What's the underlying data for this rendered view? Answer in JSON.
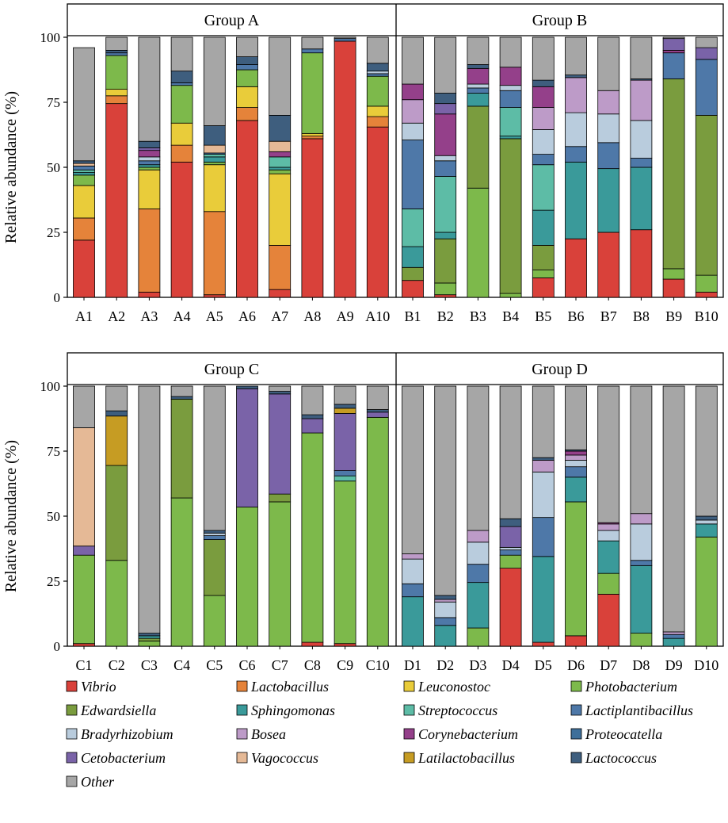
{
  "chart_data": {
    "type": "stacked-bar",
    "ylabel": "Relative abundance (%)",
    "ylim": [
      0,
      100
    ],
    "yticks": [
      0,
      25,
      50,
      75,
      100
    ],
    "taxa": [
      {
        "name": "Vibrio",
        "color": "#D9413A"
      },
      {
        "name": "Lactobacillus",
        "color": "#E5833A"
      },
      {
        "name": "Leuconostoc",
        "color": "#E9CC3A"
      },
      {
        "name": "Photobacterium",
        "color": "#7DB94B"
      },
      {
        "name": "Edwardsiella",
        "color": "#7A9C3E"
      },
      {
        "name": "Sphingomonas",
        "color": "#3A9A9A"
      },
      {
        "name": "Streptococcus",
        "color": "#5DBCA6"
      },
      {
        "name": "Lactiplantibacillus",
        "color": "#4E78A8"
      },
      {
        "name": "Bradyrhizobium",
        "color": "#B9CCDD"
      },
      {
        "name": "Bosea",
        "color": "#BD9BC8"
      },
      {
        "name": "Corynebacterium",
        "color": "#94408A"
      },
      {
        "name": "Proteocatella",
        "color": "#3E6F9A"
      },
      {
        "name": "Cetobacterium",
        "color": "#7A63A8"
      },
      {
        "name": "Vagococcus",
        "color": "#E5B996"
      },
      {
        "name": "Latilactobacillus",
        "color": "#C69C23"
      },
      {
        "name": "Lactococcus",
        "color": "#3E5E7E"
      },
      {
        "name": "Other",
        "color": "#A6A6A6"
      }
    ],
    "groups": [
      {
        "title": "Group A",
        "samples": [
          {
            "label": "A1",
            "values": [
              22,
              8.5,
              12.5,
              4,
              0,
              1,
              1,
              1.5,
              0,
              0,
              0,
              0,
              0,
              1,
              0,
              1,
              43.5
            ]
          },
          {
            "label": "A2",
            "values": [
              74.5,
              3,
              2.5,
              13,
              0,
              0,
              0,
              1,
              0,
              0,
              0,
              0,
              0,
              0,
              0,
              1,
              5
            ]
          },
          {
            "label": "A3",
            "values": [
              2,
              32,
              15,
              1,
              0,
              1,
              0,
              1.5,
              1.5,
              0,
              2.5,
              0,
              1,
              0,
              0,
              2.5,
              40
            ]
          },
          {
            "label": "A4",
            "values": [
              52,
              6.5,
              8.5,
              14.5,
              0,
              0,
              0,
              1,
              0,
              0,
              0,
              0,
              0,
              0,
              0,
              4.5,
              13
            ]
          },
          {
            "label": "A5",
            "values": [
              1,
              32,
              18,
              1,
              0,
              2,
              1,
              0.5,
              0,
              0,
              0,
              0,
              0,
              3,
              0,
              7.5,
              34
            ]
          },
          {
            "label": "A6",
            "values": [
              68,
              5,
              8,
              6.5,
              0,
              0,
              0,
              2,
              0,
              0,
              0,
              0,
              0,
              0,
              0,
              3,
              7.5
            ]
          },
          {
            "label": "A7",
            "values": [
              3,
              17,
              27.5,
              1.5,
              0,
              1,
              4,
              0,
              0,
              0,
              2,
              0,
              0,
              4,
              0,
              10,
              30
            ]
          },
          {
            "label": "A8",
            "values": [
              61,
              1,
              1,
              31,
              0,
              0,
              0,
              1.5,
              0,
              0,
              0,
              0,
              0,
              0,
              0,
              0,
              4.5
            ]
          },
          {
            "label": "A9",
            "values": [
              98.5,
              0,
              0,
              0,
              0,
              0,
              0,
              1,
              0,
              0,
              0,
              0,
              0,
              0,
              0,
              0,
              0.5
            ]
          },
          {
            "label": "A10",
            "values": [
              65.5,
              4,
              4,
              11.5,
              0,
              0,
              0,
              1,
              1,
              0,
              0,
              0,
              0,
              0,
              0,
              3,
              10
            ]
          }
        ]
      },
      {
        "title": "Group B",
        "samples": [
          {
            "label": "B1",
            "values": [
              6.5,
              0,
              0,
              0,
              5,
              8,
              14.5,
              26.5,
              6.5,
              9,
              6,
              0,
              0,
              0,
              0,
              0,
              18
            ]
          },
          {
            "label": "B2",
            "values": [
              1,
              0,
              0,
              4.5,
              17,
              2.5,
              21.5,
              6,
              2,
              0,
              16,
              0,
              4,
              0,
              0,
              4,
              21.5
            ]
          },
          {
            "label": "B3",
            "values": [
              0,
              0,
              0,
              42,
              31.5,
              5,
              0,
              2,
              1.5,
              0,
              6,
              0,
              0,
              0,
              0,
              1.5,
              10.5
            ]
          },
          {
            "label": "B4",
            "values": [
              0,
              0,
              0,
              1.5,
              59.5,
              1,
              11,
              6.5,
              2,
              0,
              7,
              0,
              0,
              0,
              0,
              0,
              11.5
            ]
          },
          {
            "label": "B5",
            "values": [
              7.5,
              0,
              0,
              3,
              9.5,
              13.5,
              17.5,
              4,
              9.5,
              8.5,
              8,
              0,
              0,
              0,
              0,
              2.5,
              16.5
            ]
          },
          {
            "label": "B6",
            "values": [
              22.5,
              0,
              0,
              0,
              0,
              29.5,
              0,
              6,
              13,
              13.5,
              0,
              0,
              0,
              0,
              0,
              1,
              14.5
            ]
          },
          {
            "label": "B7",
            "values": [
              25,
              0,
              0,
              0,
              0,
              24.5,
              0,
              10,
              11,
              9,
              0,
              0,
              0,
              0,
              0,
              0,
              20.5
            ]
          },
          {
            "label": "B8",
            "values": [
              26,
              0,
              0,
              0,
              0,
              24,
              0,
              3.5,
              14.5,
              15.5,
              0,
              0,
              0,
              0,
              0,
              0.5,
              16
            ]
          },
          {
            "label": "B9",
            "values": [
              7,
              0,
              0,
              4,
              73,
              0,
              0,
              10,
              0,
              0,
              1,
              0,
              4.5,
              0,
              0,
              0,
              0.5
            ]
          },
          {
            "label": "B10",
            "values": [
              2,
              0,
              0,
              6.5,
              61.5,
              0,
              0,
              21.5,
              0,
              0,
              0,
              0,
              4.5,
              0,
              0,
              0,
              4
            ]
          }
        ]
      },
      {
        "title": "Group C",
        "samples": [
          {
            "label": "C1",
            "values": [
              1,
              0,
              0,
              34,
              0,
              0,
              0,
              0,
              0,
              0,
              0,
              0,
              3.5,
              45.5,
              0,
              0,
              16
            ]
          },
          {
            "label": "C2",
            "values": [
              0,
              0,
              0,
              33,
              36.5,
              0,
              0,
              0,
              0,
              0,
              0,
              0,
              0,
              0,
              19,
              2,
              9.5
            ]
          },
          {
            "label": "C3",
            "values": [
              0,
              0,
              0,
              2,
              1,
              1,
              0,
              0,
              0,
              0,
              0,
              0,
              0,
              0,
              0,
              1,
              95
            ]
          },
          {
            "label": "C4",
            "values": [
              0,
              0,
              0,
              57,
              38,
              0,
              0,
              0,
              0,
              0,
              0,
              0,
              0,
              0,
              0,
              1,
              4
            ]
          },
          {
            "label": "C5",
            "values": [
              0,
              0,
              0,
              19.5,
              21.5,
              0,
              0,
              1.5,
              1,
              0,
              0,
              0,
              0,
              0,
              0,
              1,
              55.5
            ]
          },
          {
            "label": "C6",
            "values": [
              0,
              0,
              0,
              53.5,
              0,
              0,
              0,
              0,
              0,
              0,
              0,
              0,
              45.5,
              0,
              0,
              1,
              0
            ]
          },
          {
            "label": "C7",
            "values": [
              0,
              0,
              0,
              55.5,
              3,
              0,
              0,
              0,
              0,
              0,
              0,
              0,
              38.5,
              0,
              0,
              1,
              2
            ]
          },
          {
            "label": "C8",
            "values": [
              1.5,
              0,
              0,
              80.5,
              0,
              0,
              0,
              0,
              0,
              0,
              0,
              0,
              5.5,
              0,
              0,
              1.5,
              11
            ]
          },
          {
            "label": "C9",
            "values": [
              1,
              0,
              0,
              62.5,
              0,
              0,
              2,
              2,
              0,
              0,
              0,
              0,
              22,
              0,
              2,
              1.5,
              7
            ]
          },
          {
            "label": "C10",
            "values": [
              0,
              0,
              0,
              88,
              0,
              0,
              0,
              0,
              0,
              0,
              0,
              0,
              2,
              0,
              0,
              1,
              9
            ]
          }
        ]
      },
      {
        "title": "Group D",
        "samples": [
          {
            "label": "D1",
            "values": [
              0,
              0,
              0,
              0,
              0,
              19,
              0,
              5,
              9.5,
              2,
              0,
              0,
              0,
              0,
              0,
              0,
              64.5
            ]
          },
          {
            "label": "D2",
            "values": [
              0,
              0,
              0,
              0,
              0,
              8,
              0,
              3,
              6,
              1,
              0,
              0,
              0,
              0,
              0,
              1.5,
              80.5
            ]
          },
          {
            "label": "D3",
            "values": [
              0,
              0,
              0,
              7,
              0,
              17.5,
              0,
              7,
              8.5,
              4.5,
              0,
              0,
              0,
              0,
              0,
              0,
              55.5
            ]
          },
          {
            "label": "D4",
            "values": [
              30,
              0,
              0,
              5,
              0,
              0,
              0,
              2,
              1,
              0,
              0,
              0,
              8,
              0,
              0,
              3,
              51
            ]
          },
          {
            "label": "D5",
            "values": [
              1.5,
              0,
              0,
              0,
              0,
              33,
              0,
              15,
              17.5,
              4.5,
              0,
              0,
              0,
              0,
              0,
              1,
              27.5
            ]
          },
          {
            "label": "D6",
            "values": [
              4,
              0,
              0,
              51.5,
              0,
              9.5,
              0,
              4,
              2.5,
              2,
              1.5,
              0,
              0,
              0,
              0,
              0.5,
              24.5
            ]
          },
          {
            "label": "D7",
            "values": [
              20,
              0,
              0,
              8,
              0,
              12.5,
              0,
              0,
              4,
              2.5,
              0.5,
              0,
              0,
              0,
              0,
              0,
              52.5
            ]
          },
          {
            "label": "D8",
            "values": [
              0,
              0,
              0,
              5,
              0,
              26,
              0,
              2,
              14,
              4,
              0,
              0,
              0,
              0,
              0,
              0,
              49
            ]
          },
          {
            "label": "D9",
            "values": [
              0,
              0,
              0,
              0,
              0,
              3,
              0,
              1.5,
              0,
              1,
              0,
              0,
              0,
              0,
              0,
              0,
              94.5
            ]
          },
          {
            "label": "D10",
            "values": [
              0,
              0,
              0,
              42,
              0,
              5,
              0,
              0,
              1.5,
              0,
              0,
              0,
              0,
              0,
              0,
              1.5,
              50
            ]
          }
        ]
      }
    ]
  }
}
